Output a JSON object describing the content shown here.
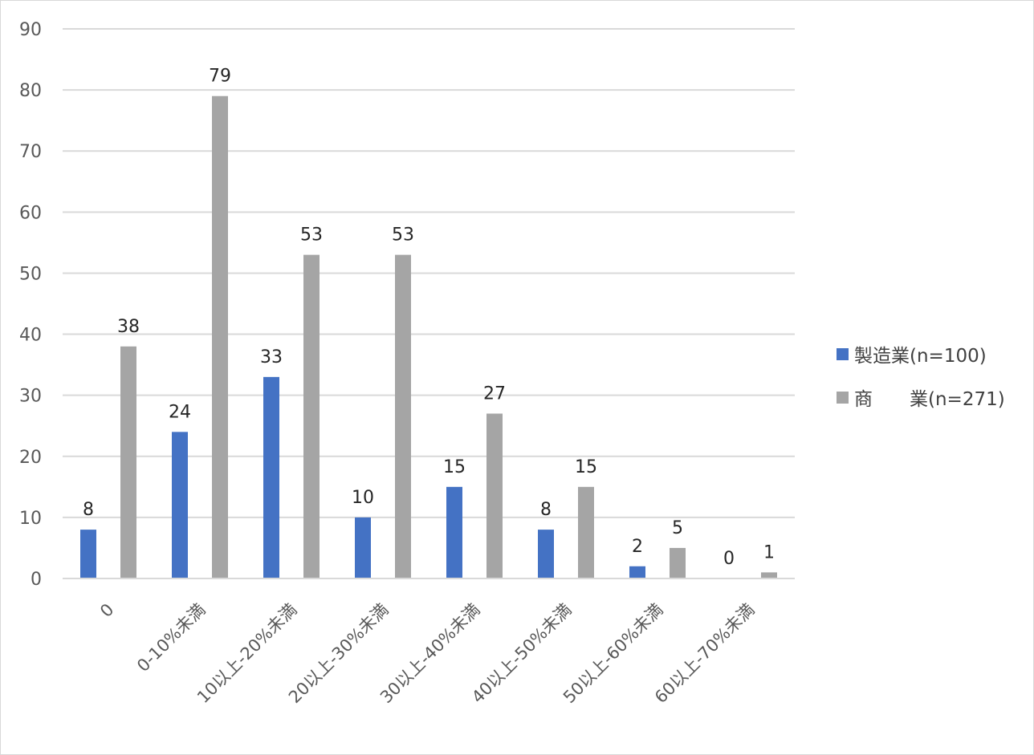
{
  "chart_data": {
    "type": "bar",
    "categories": [
      "0",
      "0-10%未満",
      "10以上-20%未満",
      "20以上-30%未満",
      "30以上-40%未満",
      "40以上-50%未満",
      "50以上-60%未満",
      "60以上-70%未満"
    ],
    "series": [
      {
        "name": "製造業(n=100)",
        "values": [
          8,
          24,
          33,
          10,
          15,
          8,
          2,
          0
        ],
        "color": "#4472c4"
      },
      {
        "name": "商　　業(n=271)",
        "values": [
          38,
          79,
          53,
          53,
          27,
          15,
          5,
          1
        ],
        "color": "#a5a5a5"
      }
    ],
    "yticks": [
      0,
      10,
      20,
      30,
      40,
      50,
      60,
      70,
      80,
      90
    ],
    "ylim": [
      0,
      90
    ],
    "grid": true,
    "legend_position": "right",
    "data_labels": true
  }
}
